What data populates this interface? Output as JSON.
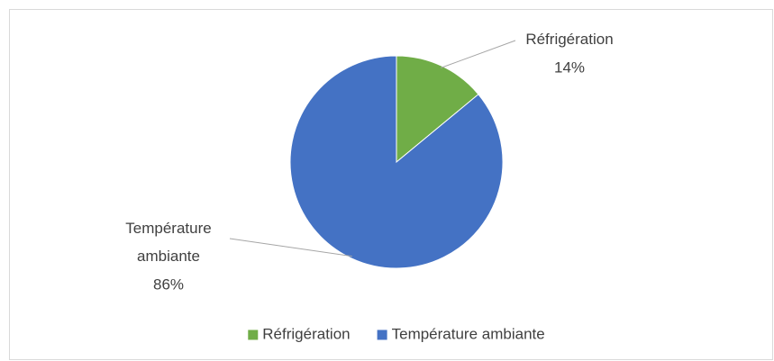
{
  "chart_data": {
    "type": "pie",
    "categories": [
      "Réfrigération",
      "Température ambiante"
    ],
    "values": [
      14,
      86
    ],
    "value_labels": [
      "14%",
      "86%"
    ],
    "colors": [
      "#70ad47",
      "#4472c4"
    ],
    "legend": "bottom"
  }
}
